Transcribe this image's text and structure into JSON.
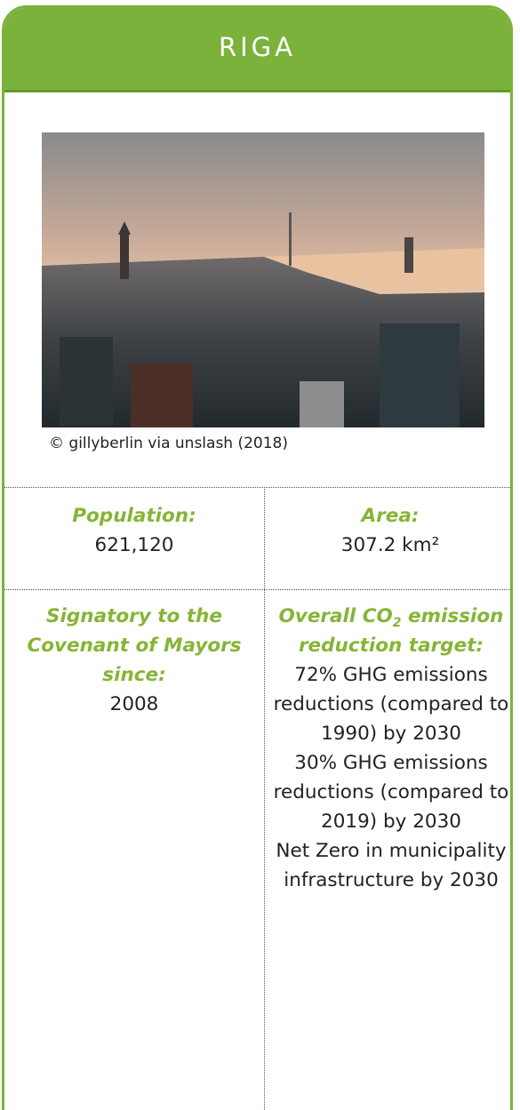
{
  "header": {
    "title": "RIGA"
  },
  "photo": {
    "caption": "© gillyberlin via unslash (2018)"
  },
  "facts": {
    "population": {
      "label": "Population:",
      "value": "621,120"
    },
    "area": {
      "label": "Area:",
      "value": "307.2 km²"
    },
    "signatory": {
      "label": "Signatory to the Covenant of Mayors since:",
      "value": "2008"
    },
    "target": {
      "label_parts": [
        "Overall CO",
        "2",
        "emission reduction target:"
      ],
      "values": [
        "72% GHG emissions reductions (compared to 1990) by 2030",
        "30% GHG emissions reductions (compared to 2019) by 2030",
        "Net Zero in municipality infrastructure by 2030"
      ]
    }
  }
}
